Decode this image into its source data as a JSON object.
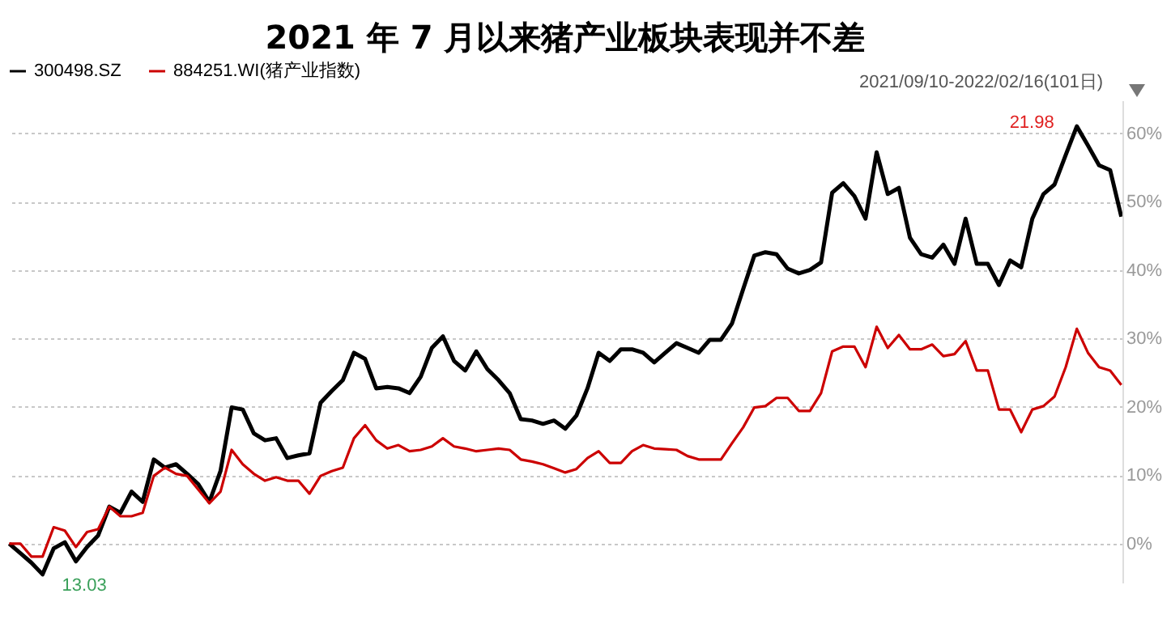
{
  "chart_data": {
    "type": "line",
    "title": "2021 年 7 月以来猪产业板块表现并不差",
    "subtitle": "2021/09/10-2022/02/16(101日)",
    "categories": [
      null,
      null,
      null,
      null,
      null,
      null,
      null,
      null,
      null,
      null,
      null,
      null,
      null,
      null,
      null,
      null,
      null,
      null,
      null,
      null,
      null,
      null,
      null,
      null,
      null,
      null,
      null,
      null,
      null,
      null,
      null,
      null,
      null,
      null,
      null,
      null,
      null,
      null,
      null,
      null,
      null,
      null,
      null,
      null,
      null,
      null,
      null,
      null,
      null,
      null,
      null,
      null,
      null,
      null,
      null,
      null,
      null,
      null,
      null,
      null,
      null,
      null,
      null,
      null,
      null,
      null,
      null,
      null,
      null,
      null,
      null,
      null,
      null,
      null,
      null,
      null,
      null,
      null,
      null,
      null,
      null,
      null,
      null,
      null,
      null,
      null,
      null,
      null,
      null,
      null,
      null,
      null,
      null,
      null,
      null,
      null,
      null,
      null,
      null,
      null,
      null
    ],
    "ylim": [
      -5.7,
      64.8
    ],
    "yticks": [
      {
        "value": 0,
        "label": "0%"
      },
      {
        "value": 10,
        "label": "10%"
      },
      {
        "value": 20,
        "label": "20%"
      },
      {
        "value": 30,
        "label": "30%"
      },
      {
        "value": 40,
        "label": "40%"
      },
      {
        "value": 50,
        "label": "50%"
      },
      {
        "value": 60,
        "label": "60%"
      }
    ],
    "tick_labels": "y",
    "grid": "y",
    "legend": "top left",
    "marker": "none",
    "line_style": "solid",
    "annotations": [
      "21.98",
      "13.03"
    ],
    "series": [
      {
        "name": "300498.SZ",
        "color": "#000000",
        "values": [
          0,
          -1.4,
          -2.8,
          -4.5,
          -0.7,
          0.2,
          -2.6,
          -0.5,
          1.2,
          5.4,
          4.5,
          7.6,
          6.1,
          12.3,
          11.1,
          11.6,
          10.2,
          8.7,
          6.1,
          10.6,
          19.9,
          19.6,
          16.1,
          15.1,
          15.4,
          12.5,
          12.9,
          13.2,
          20.6,
          22.3,
          23.9,
          27.9,
          27.0,
          22.7,
          22.9,
          22.7,
          22.0,
          24.4,
          28.6,
          30.3,
          26.7,
          25.3,
          28.1,
          25.5,
          23.9,
          22.0,
          18.2,
          18.0,
          17.5,
          18.0,
          16.8,
          18.7,
          22.7,
          27.9,
          26.7,
          28.4,
          28.4,
          27.9,
          26.5,
          27.9,
          29.3,
          28.6,
          27.9,
          29.8,
          29.8,
          32.2,
          37.2,
          42.1,
          42.6,
          42.3,
          40.2,
          39.5,
          40.0,
          41.1,
          51.3,
          52.7,
          50.8,
          47.5,
          57.2,
          51.1,
          52.0,
          44.7,
          42.3,
          41.8,
          43.7,
          40.9,
          47.5,
          40.9,
          40.9,
          37.8,
          41.4,
          40.4,
          47.5,
          51.1,
          52.5,
          56.8,
          61.0,
          58.2,
          55.3,
          54.6,
          47.8
        ]
      },
      {
        "name": "884251.WI(猪产业指数)",
        "color": "#cc0000",
        "values": [
          0,
          0,
          -1.9,
          -1.9,
          2.4,
          1.9,
          -0.5,
          1.7,
          2.1,
          5.4,
          4.0,
          4.0,
          4.5,
          9.9,
          11.1,
          10.2,
          9.9,
          7.9,
          5.9,
          7.6,
          13.7,
          11.6,
          10.2,
          9.2,
          9.7,
          9.2,
          9.2,
          7.3,
          9.9,
          10.6,
          11.1,
          15.4,
          17.3,
          15.1,
          13.9,
          14.4,
          13.5,
          13.7,
          14.2,
          15.4,
          14.2,
          13.9,
          13.5,
          13.7,
          13.9,
          13.7,
          12.3,
          12.0,
          11.6,
          11.0,
          10.4,
          10.9,
          12.5,
          13.5,
          11.8,
          11.8,
          13.5,
          14.4,
          13.9,
          13.8,
          13.7,
          12.8,
          12.3,
          12.3,
          12.3,
          14.7,
          17.0,
          19.9,
          20.1,
          21.3,
          21.3,
          19.4,
          19.4,
          22.0,
          28.1,
          28.8,
          28.8,
          25.8,
          31.7,
          28.6,
          30.5,
          28.4,
          28.4,
          29.1,
          27.4,
          27.7,
          29.6,
          25.3,
          25.3,
          19.6,
          19.6,
          16.3,
          19.6,
          20.1,
          21.5,
          25.8,
          31.4,
          27.9,
          25.8,
          25.3,
          23.2
        ]
      }
    ]
  }
}
